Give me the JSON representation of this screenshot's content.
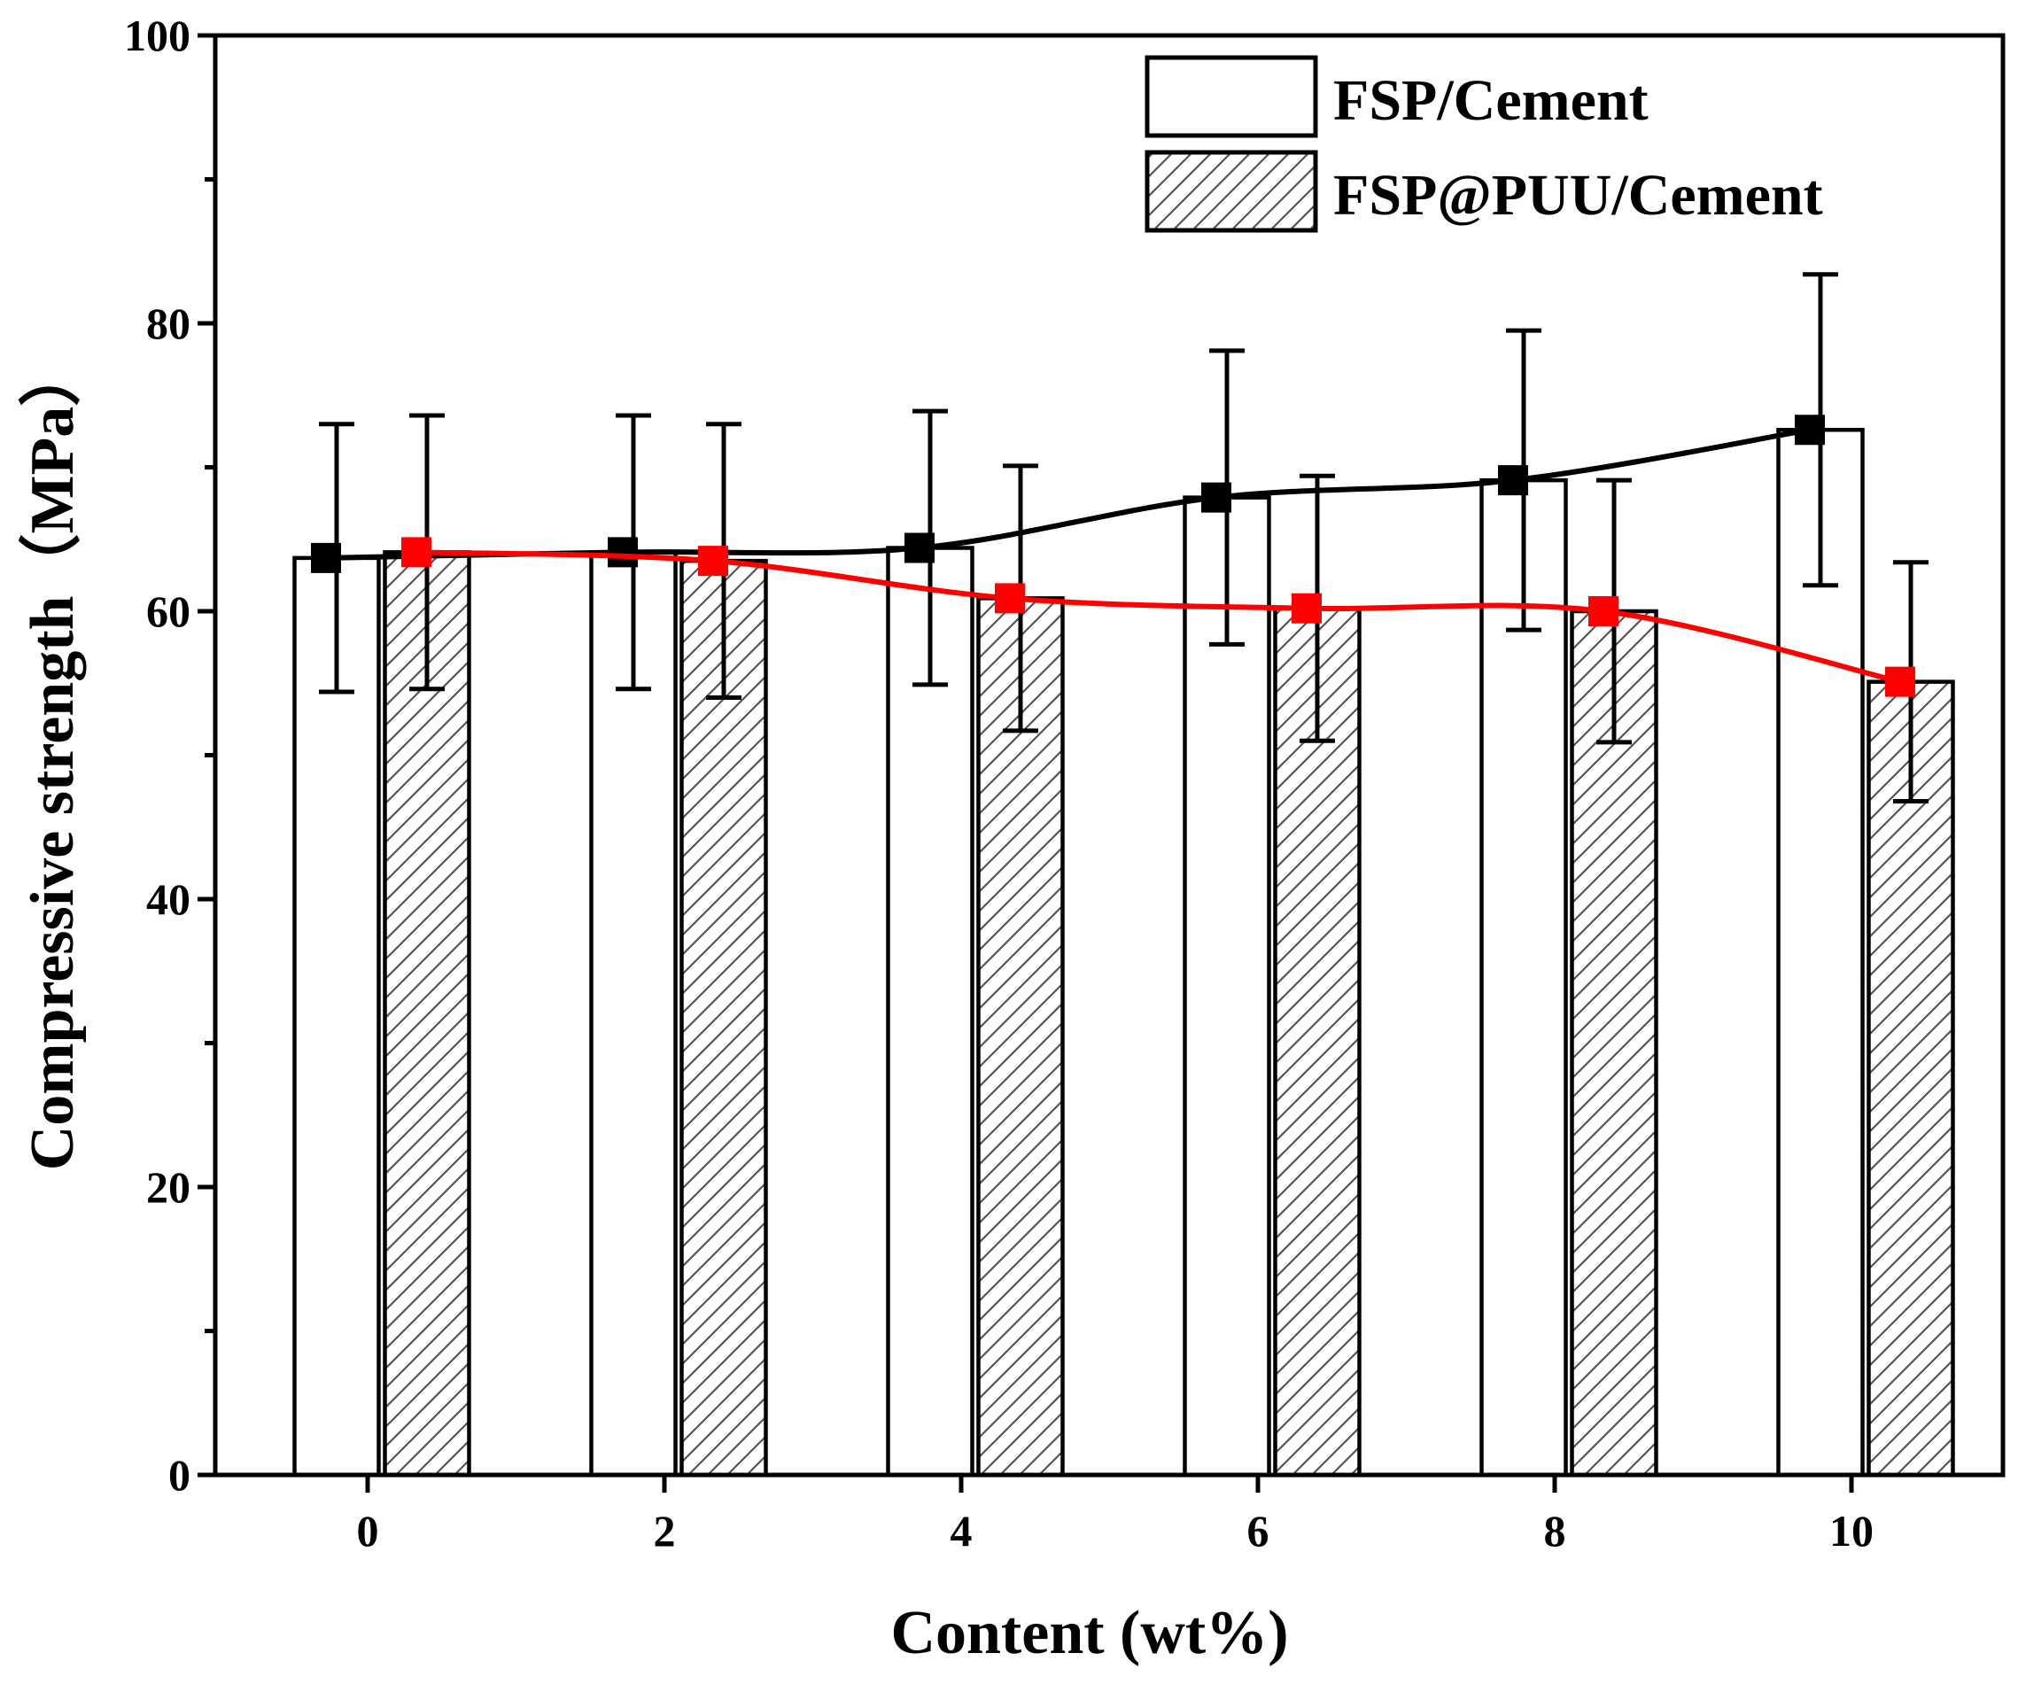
{
  "chart_data": {
    "type": "bar",
    "title": "",
    "xlabel": "Content (wt%)",
    "ylabel": "Compressive strength（MPa）",
    "ylim": [
      0,
      100
    ],
    "yticks": [
      "0",
      "20",
      "40",
      "60",
      "80",
      "100"
    ],
    "categories": [
      "0",
      "2",
      "4",
      "6",
      "8",
      "10"
    ],
    "legend_position": "top-right",
    "series": [
      {
        "name": "FSP/Cement",
        "pattern": "none",
        "line_color": "#000000",
        "values": [
          63.7,
          64.1,
          64.4,
          67.9,
          69.1,
          72.6
        ],
        "errors": [
          9.3,
          9.5,
          9.5,
          10.2,
          10.4,
          10.8
        ]
      },
      {
        "name": "FSP@PUU/Cement",
        "pattern": "hatch",
        "line_color": "#ff0000",
        "values": [
          64.1,
          63.5,
          60.9,
          60.2,
          60.0,
          55.1
        ],
        "errors": [
          9.5,
          9.5,
          9.2,
          9.2,
          9.1,
          8.3
        ]
      }
    ]
  }
}
